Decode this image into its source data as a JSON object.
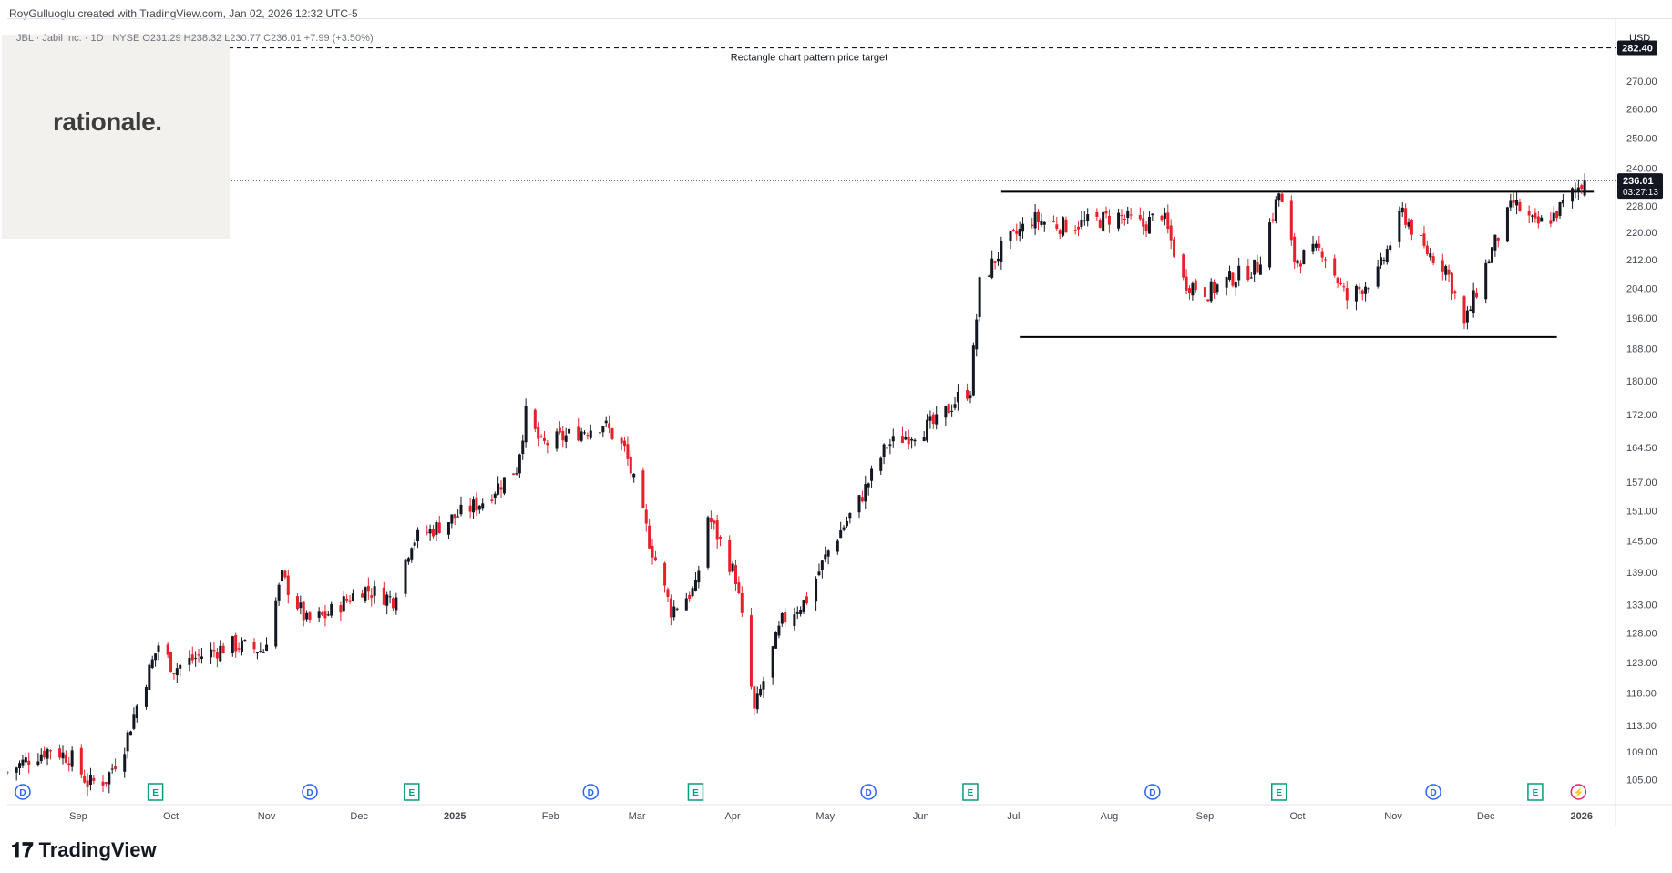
{
  "header": {
    "attribution": "RoyGulluoglu created with TradingView.com, Jan 02, 2026 12:32 UTC-5"
  },
  "legend": {
    "symbol": "JBL · Jabil Inc. · 1D · NYSE",
    "o": "O231.29",
    "h": "H238.32",
    "l": "L230.77",
    "c": "C236.01",
    "change": "+7.99 (+3.50%)"
  },
  "watermark": {
    "text": "rationale."
  },
  "brand": {
    "name": "TradingView"
  },
  "chart_data": {
    "type": "candlestick",
    "currency": "USD",
    "y_scale": "log",
    "ylim": [
      103,
      290
    ],
    "y_ticks": [
      "105.00",
      "109.00",
      "113.00",
      "118.00",
      "123.00",
      "128.00",
      "133.00",
      "139.00",
      "145.00",
      "151.00",
      "157.00",
      "164.50",
      "172.00",
      "180.00",
      "188.00",
      "196.00",
      "204.00",
      "212.00",
      "220.00",
      "228.00",
      "240.00",
      "250.00",
      "260.00",
      "270.00"
    ],
    "x_ticks": [
      {
        "label": "Sep",
        "date": "2024-09-01"
      },
      {
        "label": "Oct",
        "date": "2024-10-01"
      },
      {
        "label": "Nov",
        "date": "2024-11-01"
      },
      {
        "label": "Dec",
        "date": "2024-12-01"
      },
      {
        "label": "2025",
        "date": "2025-01-01"
      },
      {
        "label": "Feb",
        "date": "2025-02-01"
      },
      {
        "label": "Mar",
        "date": "2025-03-01"
      },
      {
        "label": "Apr",
        "date": "2025-04-01"
      },
      {
        "label": "May",
        "date": "2025-05-01"
      },
      {
        "label": "Jun",
        "date": "2025-06-01"
      },
      {
        "label": "Jul",
        "date": "2025-07-01"
      },
      {
        "label": "Aug",
        "date": "2025-08-01"
      },
      {
        "label": "Sep",
        "date": "2025-09-01"
      },
      {
        "label": "Oct",
        "date": "2025-10-01"
      },
      {
        "label": "Nov",
        "date": "2025-11-01"
      },
      {
        "label": "Dec",
        "date": "2025-12-01"
      },
      {
        "label": "2026",
        "date": "2026-01-01"
      }
    ],
    "xlim": [
      "2024-08-09",
      "2026-01-12"
    ],
    "last_price": {
      "value": 236.01,
      "label": "236.01",
      "countdown": "03:27:13"
    },
    "target": {
      "value": 282.4,
      "label": "282.40",
      "annotation": "Rectangle chart pattern price target"
    },
    "resistance": {
      "value": 232.5,
      "from": "2025-06-27",
      "to": "2026-01-02"
    },
    "support": {
      "value": 191.0,
      "from": "2025-07-03",
      "to": "2025-12-24"
    },
    "events": [
      {
        "type": "D",
        "date": "2024-08-14"
      },
      {
        "type": "E",
        "date": "2024-09-26"
      },
      {
        "type": "D",
        "date": "2024-11-15"
      },
      {
        "type": "E",
        "date": "2024-12-18"
      },
      {
        "type": "D",
        "date": "2025-02-14"
      },
      {
        "type": "E",
        "date": "2025-03-20"
      },
      {
        "type": "D",
        "date": "2025-05-15"
      },
      {
        "type": "E",
        "date": "2025-06-17"
      },
      {
        "type": "D",
        "date": "2025-08-15"
      },
      {
        "type": "E",
        "date": "2025-09-25"
      },
      {
        "type": "D",
        "date": "2025-11-14"
      },
      {
        "type": "E",
        "date": "2025-12-17"
      },
      {
        "type": "S",
        "date": "2025-12-31"
      }
    ],
    "price_path": [
      [
        "2024-08-09",
        106
      ],
      [
        "2024-08-16",
        108
      ],
      [
        "2024-08-23",
        109.5
      ],
      [
        "2024-08-30",
        108
      ],
      [
        "2024-09-04",
        104.5
      ],
      [
        "2024-09-10",
        105
      ],
      [
        "2024-09-16",
        110
      ],
      [
        "2024-09-20",
        116
      ],
      [
        "2024-09-27",
        126
      ],
      [
        "2024-10-02",
        122
      ],
      [
        "2024-10-10",
        124
      ],
      [
        "2024-10-21",
        126
      ],
      [
        "2024-10-31",
        125
      ],
      [
        "2024-11-06",
        138
      ],
      [
        "2024-11-14",
        130
      ],
      [
        "2024-11-20",
        131
      ],
      [
        "2024-12-02",
        136
      ],
      [
        "2024-12-12",
        134
      ],
      [
        "2024-12-18",
        145
      ],
      [
        "2024-12-27",
        148
      ],
      [
        "2025-01-10",
        153
      ],
      [
        "2025-01-21",
        160
      ],
      [
        "2025-01-24",
        172
      ],
      [
        "2025-01-29",
        165
      ],
      [
        "2025-02-10",
        168
      ],
      [
        "2025-02-18",
        170
      ],
      [
        "2025-02-25",
        164
      ],
      [
        "2025-03-05",
        145
      ],
      [
        "2025-03-12",
        132
      ],
      [
        "2025-03-20",
        136
      ],
      [
        "2025-03-24",
        150
      ],
      [
        "2025-04-02",
        138
      ],
      [
        "2025-04-08",
        115
      ],
      [
        "2025-04-17",
        130
      ],
      [
        "2025-04-25",
        134
      ],
      [
        "2025-05-02",
        143
      ],
      [
        "2025-05-12",
        153
      ],
      [
        "2025-05-21",
        165
      ],
      [
        "2025-05-30",
        168
      ],
      [
        "2025-06-06",
        170
      ],
      [
        "2025-06-13",
        176
      ],
      [
        "2025-06-17",
        178
      ],
      [
        "2025-06-20",
        205
      ],
      [
        "2025-06-27",
        215
      ],
      [
        "2025-07-07",
        224
      ],
      [
        "2025-07-17",
        222
      ],
      [
        "2025-07-25",
        223
      ],
      [
        "2025-08-04",
        225
      ],
      [
        "2025-08-12",
        222
      ],
      [
        "2025-08-18",
        226
      ],
      [
        "2025-08-25",
        206
      ],
      [
        "2025-09-02",
        203
      ],
      [
        "2025-09-10",
        207
      ],
      [
        "2025-09-18",
        210
      ],
      [
        "2025-09-25",
        232
      ],
      [
        "2025-09-30",
        212
      ],
      [
        "2025-10-09",
        215
      ],
      [
        "2025-10-17",
        201
      ],
      [
        "2025-10-27",
        208
      ],
      [
        "2025-11-04",
        226
      ],
      [
        "2025-11-11",
        215
      ],
      [
        "2025-11-18",
        210
      ],
      [
        "2025-11-24",
        194
      ],
      [
        "2025-12-03",
        215
      ],
      [
        "2025-12-10",
        229
      ],
      [
        "2025-12-17",
        222
      ],
      [
        "2025-12-23",
        225
      ],
      [
        "2025-12-29",
        232
      ],
      [
        "2026-01-02",
        236
      ]
    ]
  }
}
